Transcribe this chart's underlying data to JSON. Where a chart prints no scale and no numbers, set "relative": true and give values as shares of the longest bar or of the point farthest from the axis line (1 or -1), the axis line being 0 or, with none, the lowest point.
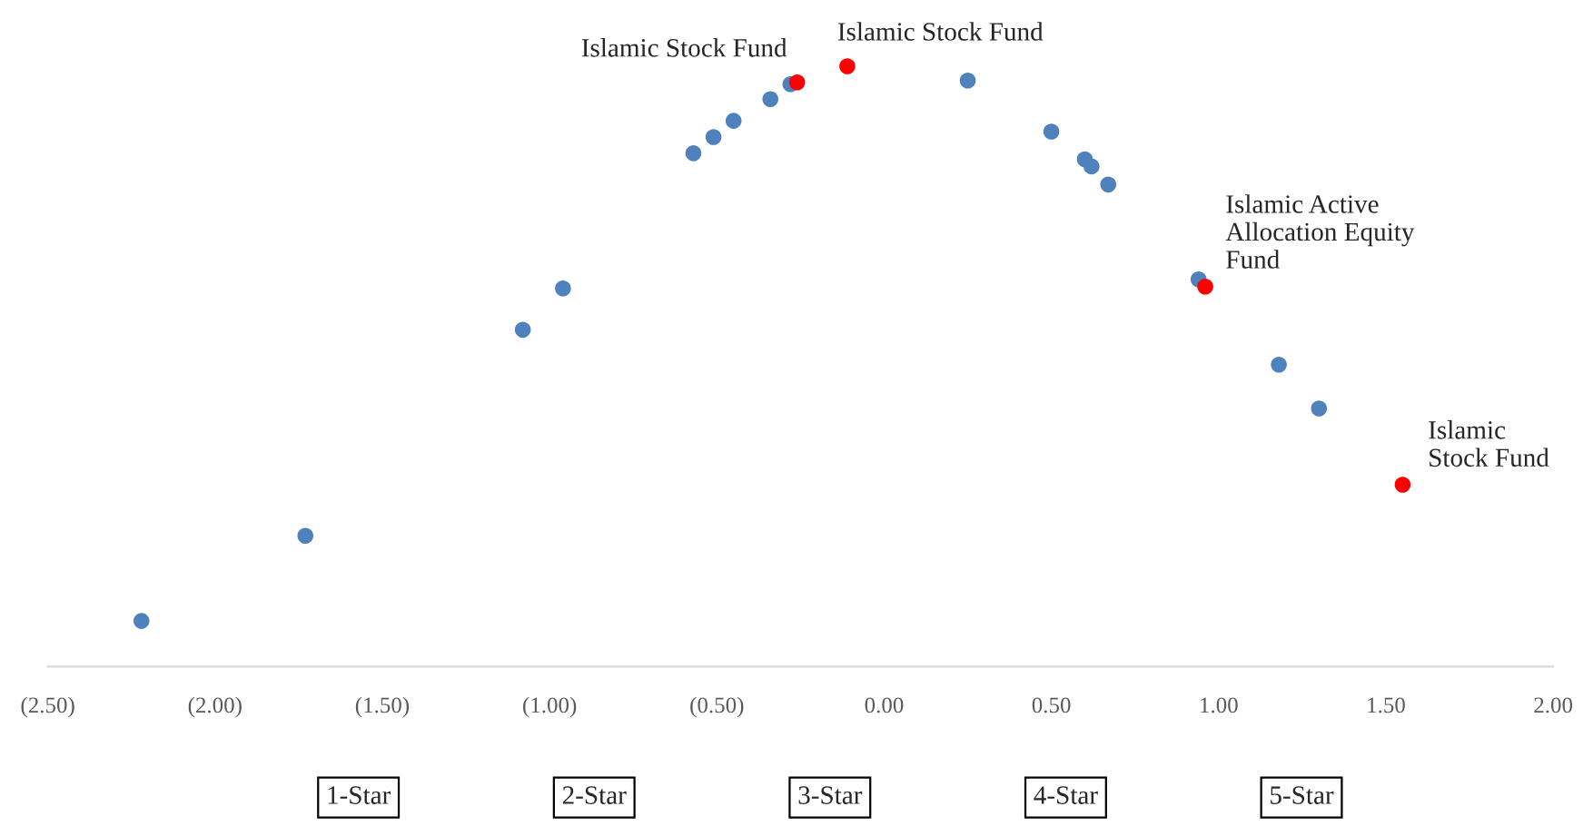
{
  "chart_data": {
    "type": "scatter",
    "relative": true,
    "marker": "circle",
    "grid": false,
    "legend": false,
    "tick_labels": "x",
    "xlim": [
      -2.5,
      2.0
    ],
    "xticks": [
      {
        "value": -2.5,
        "label": "(2.50)"
      },
      {
        "value": -2.0,
        "label": "(2.00)"
      },
      {
        "value": -1.5,
        "label": "(1.50)"
      },
      {
        "value": -1.0,
        "label": "(1.00)"
      },
      {
        "value": -0.5,
        "label": "(0.50)"
      },
      {
        "value": 0.0,
        "label": "0.00"
      },
      {
        "value": 0.5,
        "label": "0.50"
      },
      {
        "value": 1.0,
        "label": "1.00"
      },
      {
        "value": 1.5,
        "label": "1.50"
      },
      {
        "value": 2.0,
        "label": "2.00"
      }
    ],
    "series": [
      {
        "color": "#4f81bd",
        "x": [
          -2.22,
          -1.73,
          -1.08,
          -0.96,
          -0.57,
          -0.51,
          -0.45,
          -0.34,
          -0.28,
          0.25,
          0.5,
          0.6,
          0.62,
          0.67,
          0.94,
          1.18,
          1.3
        ],
        "values": [
          0.076,
          0.218,
          0.561,
          0.63,
          0.855,
          0.882,
          0.909,
          0.945,
          0.97,
          0.976,
          0.891,
          0.845,
          0.833,
          0.803,
          0.645,
          0.503,
          0.43
        ]
      },
      {
        "color": "#ff0000",
        "x": [
          -0.26,
          -0.11,
          0.96,
          1.55
        ],
        "values": [
          0.973,
          1.0,
          0.633,
          0.303
        ]
      }
    ],
    "annotations": [
      {
        "text": "Islamic Stock Fund",
        "x": -0.26,
        "y": 0.973
      },
      {
        "text": "Islamic Stock Fund",
        "x": -0.11,
        "y": 1.0
      },
      {
        "text": "Islamic Active\nAllocation Equity\nFund",
        "x": 0.96,
        "y": 0.633
      },
      {
        "text": "Islamic\nStock Fund",
        "x": 1.55,
        "y": 0.303
      },
      "1-Star",
      "2-Star",
      "3-Star",
      "4-Star",
      "5-Star"
    ]
  }
}
